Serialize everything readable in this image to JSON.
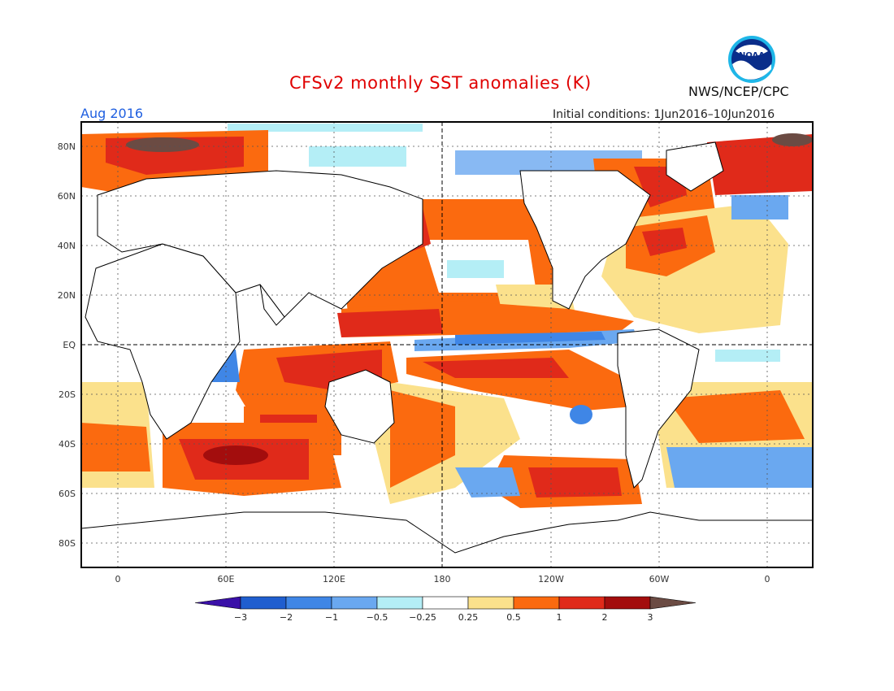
{
  "title": "CFSv2 monthly SST anomalies (K)",
  "month": "Aug 2016",
  "initial_conditions": "Initial conditions: 1Jun2016–10Jun2016",
  "agency": "NWS/NCEP/CPC",
  "logo_text": "NOAA",
  "lat_labels": [
    "80N",
    "60N",
    "40N",
    "20N",
    "EQ",
    "20S",
    "40S",
    "60S",
    "80S"
  ],
  "lon_labels": [
    "0",
    "60E",
    "120E",
    "180",
    "120W",
    "60W",
    "0"
  ],
  "colorbar": {
    "labels": [
      "−3",
      "−2",
      "−1",
      "−0.5",
      "−0.25",
      "0.25",
      "0.5",
      "1",
      "2",
      "3"
    ],
    "colors": [
      "#3a10a8",
      "#1f5ecf",
      "#3f86e6",
      "#6aa8f0",
      "#b4eef6",
      "#ffffff",
      "#fbe18c",
      "#fb6a0f",
      "#e02a1a",
      "#a30d0d",
      "#6b4b43"
    ]
  },
  "colors": {
    "land": "#ffffff",
    "near_zero": "#ffffff",
    "title": "#e00000",
    "month_label": "#1f5fe0"
  }
}
